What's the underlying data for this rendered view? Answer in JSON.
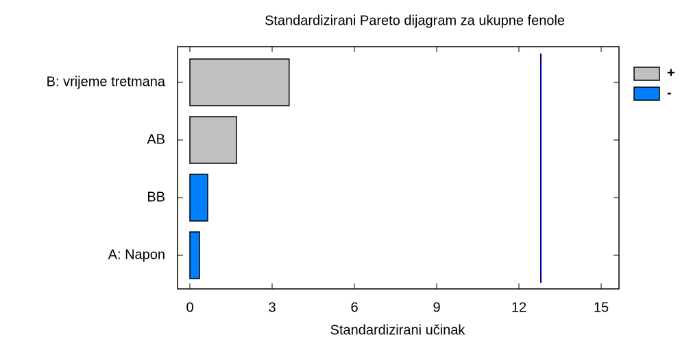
{
  "chart_data": {
    "type": "bar",
    "orientation": "horizontal",
    "title": "Standardizirani Pareto dijagram za ukupne fenole",
    "xlabel": "Standardizirani učinak",
    "categories": [
      "B: vrijeme tretmana",
      "AB",
      "BB",
      "A: Napon"
    ],
    "series": [
      {
        "name": "+",
        "color": "#c0c0c0",
        "values": [
          3.62,
          1.7,
          null,
          null
        ]
      },
      {
        "name": "-",
        "color": "#0080ff",
        "values": [
          null,
          null,
          0.65,
          0.35
        ]
      }
    ],
    "reference_line": {
      "value": 12.8,
      "color": "#0000a0"
    },
    "xlim": [
      -0.45,
      15.65
    ],
    "xticks": [
      0,
      3,
      6,
      9,
      12,
      15
    ],
    "legend": "right"
  }
}
